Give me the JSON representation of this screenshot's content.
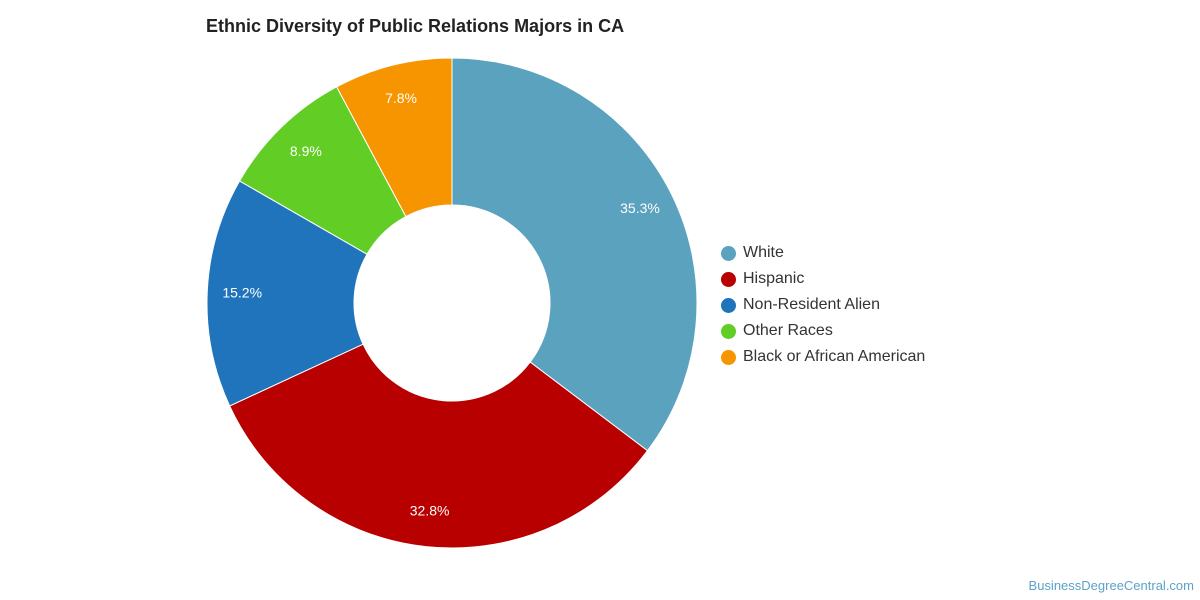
{
  "chart_data": {
    "type": "pie",
    "donut": true,
    "title": "Ethnic Diversity of Public Relations Majors in CA",
    "categories": [
      "White",
      "Hispanic",
      "Non-Resident Alien",
      "Other Races",
      "Black or African American"
    ],
    "values": [
      35.3,
      32.8,
      15.2,
      8.9,
      7.8
    ],
    "value_labels": [
      "35.3%",
      "32.8%",
      "15.2%",
      "8.9%",
      "7.8%"
    ],
    "colors": [
      "#5ba2bf",
      "#b80000",
      "#1f74bb",
      "#62cd24",
      "#f79500"
    ],
    "legend_position": "right"
  },
  "credit": "BusinessDegreeCentral.com"
}
